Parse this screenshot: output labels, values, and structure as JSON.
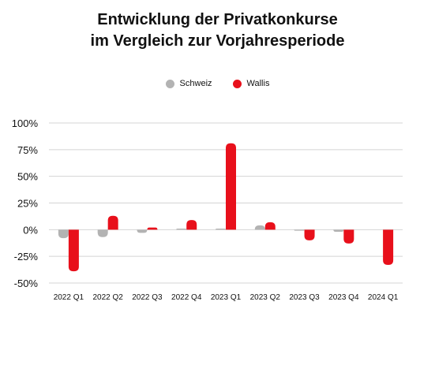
{
  "title_line1": "Entwicklung der Privatkonkurse",
  "title_line2": "im Vergleich zur Vorjahresperiode",
  "colors": {
    "schweiz": "#b3b3b3",
    "wallis": "#e8101b",
    "grid": "#d4d4d4"
  },
  "chart_data": {
    "type": "bar",
    "title": "Entwicklung der Privatkonkurse im Vergleich zur Vorjahresperiode",
    "categories": [
      "2022 Q1",
      "2022 Q2",
      "2022 Q3",
      "2022 Q4",
      "2023 Q1",
      "2023 Q2",
      "2023 Q3",
      "2023 Q4",
      "2024 Q1"
    ],
    "series": [
      {
        "name": "Schweiz",
        "values": [
          -8,
          -7,
          -3,
          1,
          1,
          4,
          -1,
          -2,
          0
        ]
      },
      {
        "name": "Wallis",
        "values": [
          -39,
          13,
          2,
          9,
          81,
          7,
          -10,
          -13,
          -33
        ]
      }
    ],
    "ylim": [
      -50,
      100
    ],
    "yticks": [
      -50,
      -25,
      0,
      25,
      50,
      75,
      100
    ],
    "ytick_labels": [
      "-50%",
      "-25%",
      "0%",
      "25%",
      "50%",
      "75%",
      "100%"
    ],
    "grid": true,
    "legend": "top-center"
  }
}
